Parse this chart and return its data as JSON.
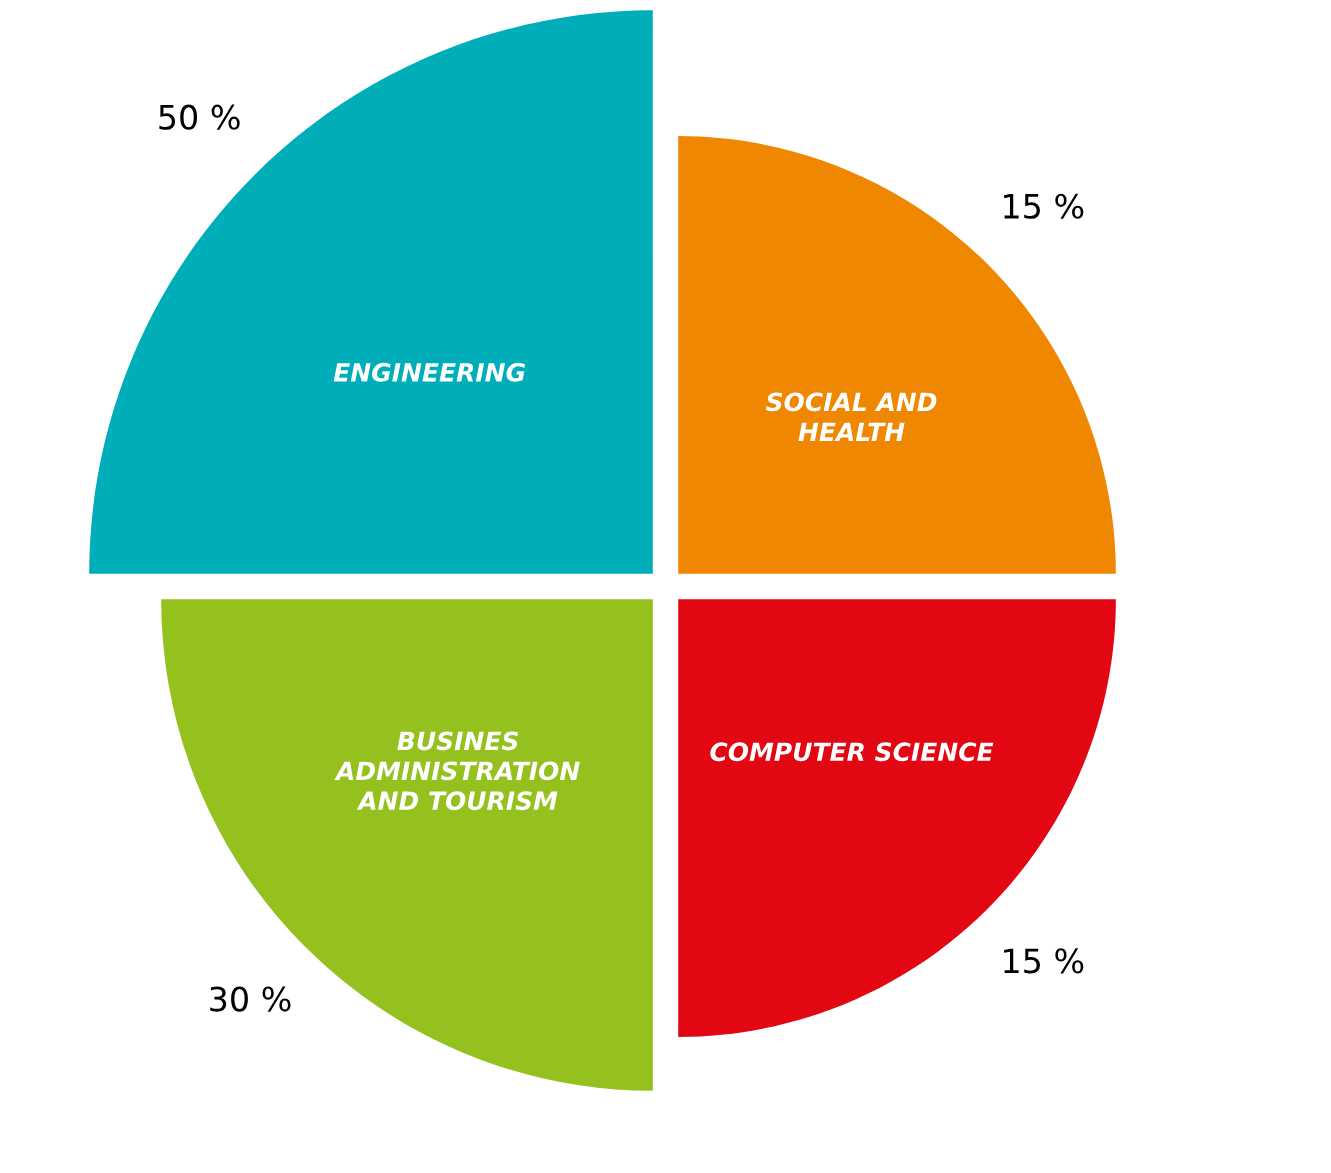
{
  "chart_data": {
    "type": "other",
    "categories": [
      "SOCIAL AND\nHEALTH",
      "COMPUTER SCIENCE",
      "BUSINES\nADMINISTRATION\nAND TOURISM",
      "ENGINEERING"
    ],
    "values": [
      15,
      15,
      30,
      50
    ],
    "value_labels": [
      "15 %",
      "15 %",
      "30 %",
      "50 %"
    ],
    "colors": [
      "#f08700",
      "#e30613",
      "#95c11f",
      "#00aeb9"
    ]
  }
}
